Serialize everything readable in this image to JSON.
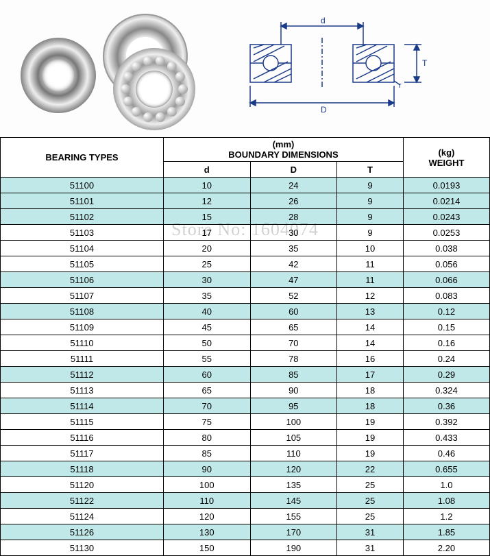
{
  "diagram": {
    "labels": {
      "d_small": "d",
      "D_big": "D",
      "T": "T",
      "r": "r"
    },
    "line_color": "#1a3a8a",
    "hatch_color": "#2a5aa0"
  },
  "watermark": "Store No: 1604074",
  "table": {
    "header": {
      "col1": "BEARING TYPES",
      "group_unit": "(mm)",
      "group_label": "BOUNDARY DIMENSIONS",
      "sub_d": "d",
      "sub_D": "D",
      "sub_T": "T",
      "col5_unit": "(kg)",
      "col5_label": "WEIGHT"
    },
    "stripe_color": "#c0e8e8",
    "plain_color": "#ffffff",
    "border_color": "#000000",
    "font_size": 13,
    "rows": [
      {
        "type": "51100",
        "d": "10",
        "D": "24",
        "T": "9",
        "w": "0.0193",
        "striped": true
      },
      {
        "type": "51101",
        "d": "12",
        "D": "26",
        "T": "9",
        "w": "0.0214",
        "striped": true
      },
      {
        "type": "51102",
        "d": "15",
        "D": "28",
        "T": "9",
        "w": "0.0243",
        "striped": true
      },
      {
        "type": "51103",
        "d": "17",
        "D": "30",
        "T": "9",
        "w": "0.0253",
        "striped": false
      },
      {
        "type": "51104",
        "d": "20",
        "D": "35",
        "T": "10",
        "w": "0.038",
        "striped": false
      },
      {
        "type": "51105",
        "d": "25",
        "D": "42",
        "T": "11",
        "w": "0.056",
        "striped": false
      },
      {
        "type": "51106",
        "d": "30",
        "D": "47",
        "T": "11",
        "w": "0.066",
        "striped": true
      },
      {
        "type": "51107",
        "d": "35",
        "D": "52",
        "T": "12",
        "w": "0.083",
        "striped": false
      },
      {
        "type": "51108",
        "d": "40",
        "D": "60",
        "T": "13",
        "w": "0.12",
        "striped": true
      },
      {
        "type": "51109",
        "d": "45",
        "D": "65",
        "T": "14",
        "w": "0.15",
        "striped": false
      },
      {
        "type": "51110",
        "d": "50",
        "D": "70",
        "T": "14",
        "w": "0.16",
        "striped": false
      },
      {
        "type": "51111",
        "d": "55",
        "D": "78",
        "T": "16",
        "w": "0.24",
        "striped": false
      },
      {
        "type": "51112",
        "d": "60",
        "D": "85",
        "T": "17",
        "w": "0.29",
        "striped": true
      },
      {
        "type": "51113",
        "d": "65",
        "D": "90",
        "T": "18",
        "w": "0.324",
        "striped": false
      },
      {
        "type": "51114",
        "d": "70",
        "D": "95",
        "T": "18",
        "w": "0.36",
        "striped": true
      },
      {
        "type": "51115",
        "d": "75",
        "D": "100",
        "T": "19",
        "w": "0.392",
        "striped": false
      },
      {
        "type": "51116",
        "d": "80",
        "D": "105",
        "T": "19",
        "w": "0.433",
        "striped": false
      },
      {
        "type": "51117",
        "d": "85",
        "D": "110",
        "T": "19",
        "w": "0.46",
        "striped": false
      },
      {
        "type": "51118",
        "d": "90",
        "D": "120",
        "T": "22",
        "w": "0.655",
        "striped": true
      },
      {
        "type": "51120",
        "d": "100",
        "D": "135",
        "T": "25",
        "w": "1.0",
        "striped": false
      },
      {
        "type": "51122",
        "d": "110",
        "D": "145",
        "T": "25",
        "w": "1.08",
        "striped": true
      },
      {
        "type": "51124",
        "d": "120",
        "D": "155",
        "T": "25",
        "w": "1.2",
        "striped": false
      },
      {
        "type": "51126",
        "d": "130",
        "D": "170",
        "T": "31",
        "w": "1.85",
        "striped": true
      },
      {
        "type": "51130",
        "d": "150",
        "D": "190",
        "T": "31",
        "w": "2.20",
        "striped": false
      }
    ]
  }
}
